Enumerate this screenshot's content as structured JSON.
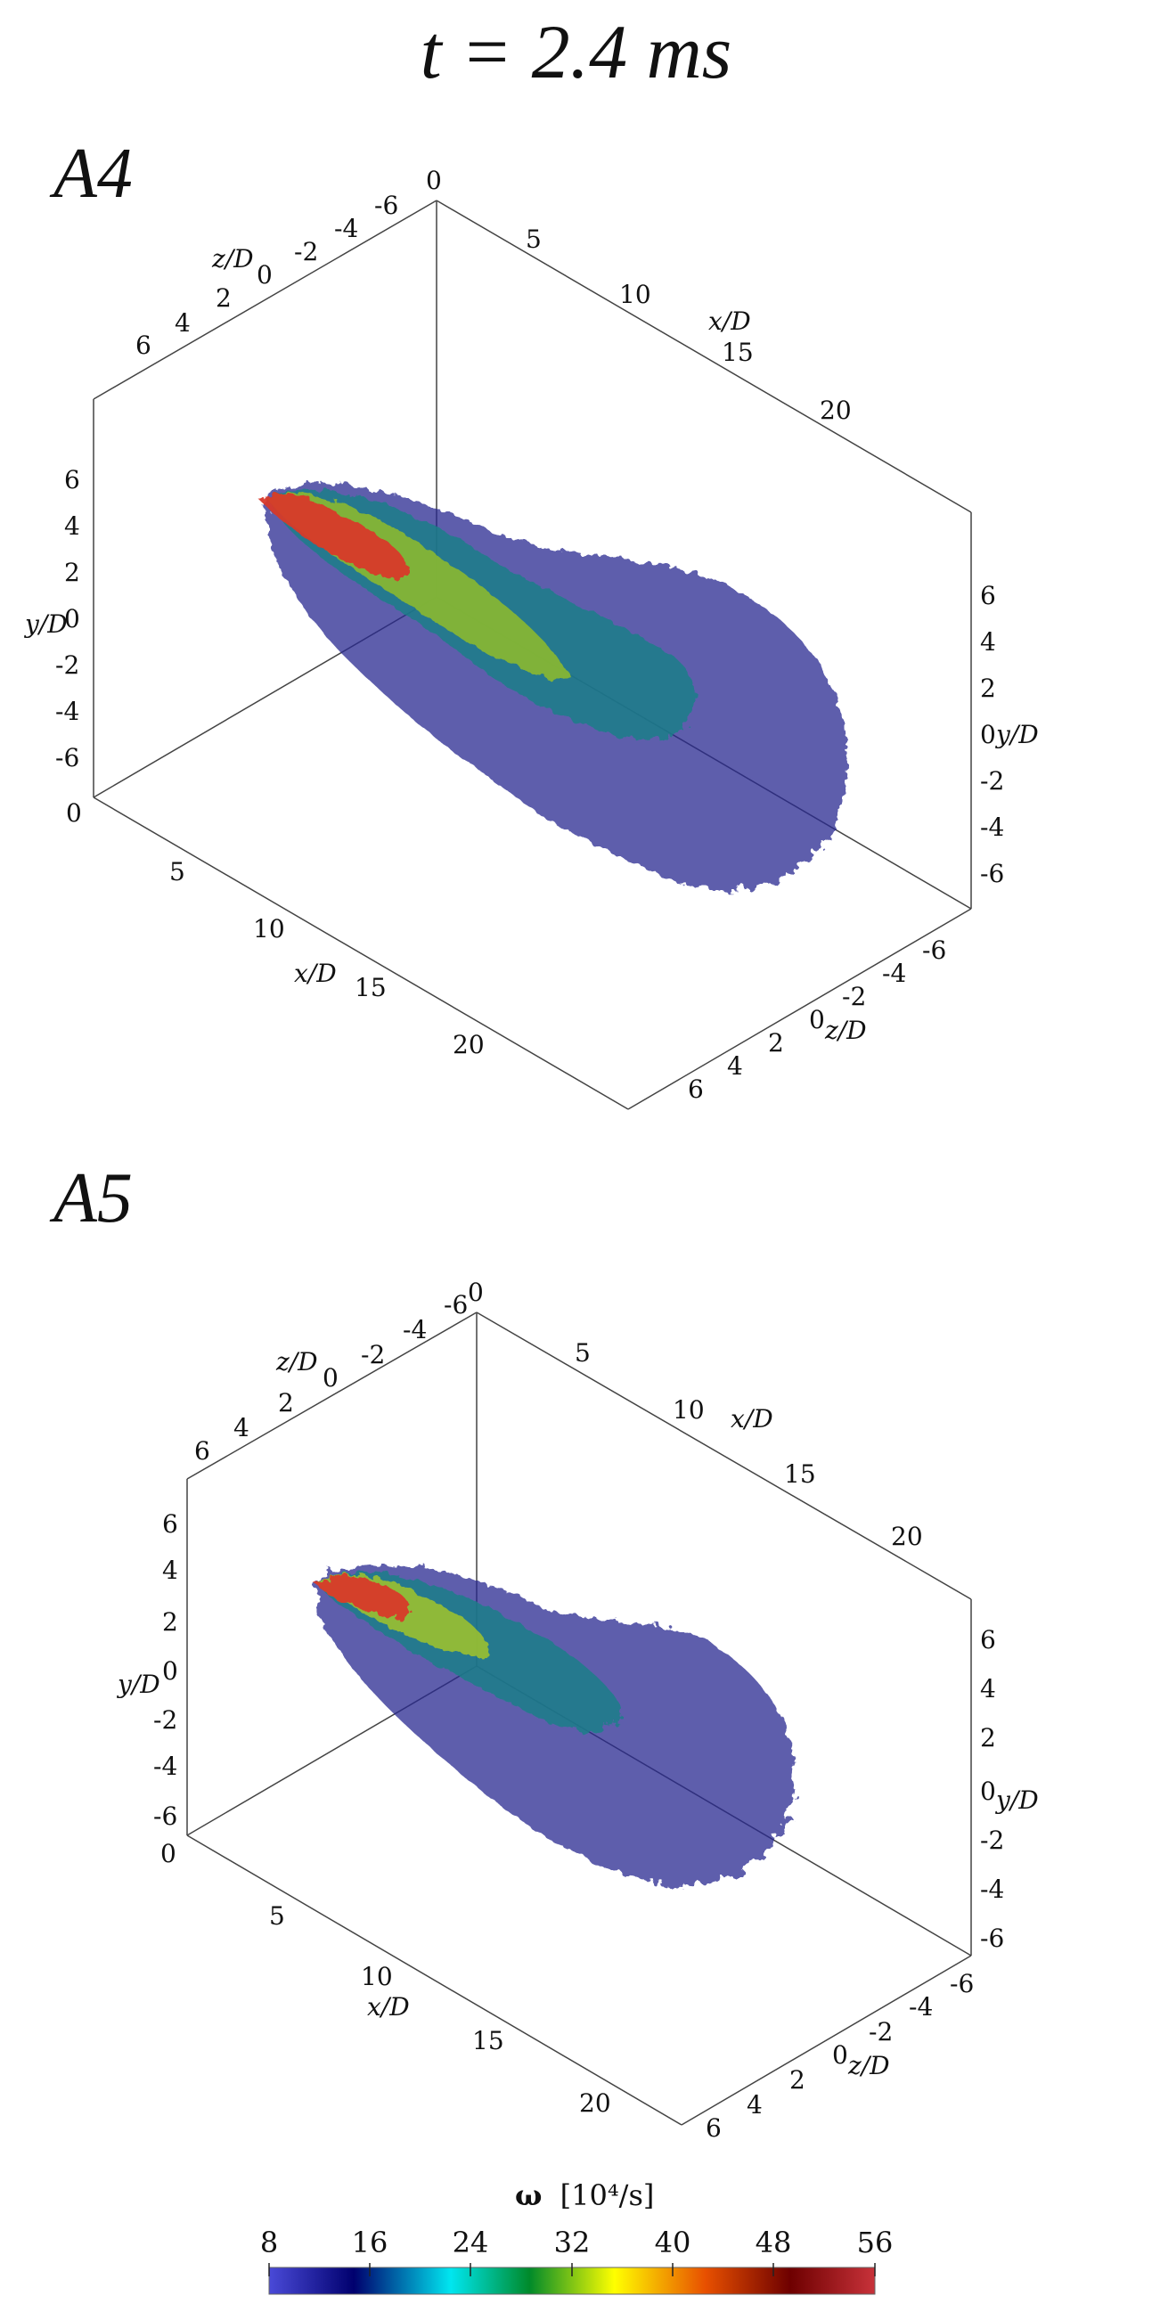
{
  "title": "t = 2.4 ms",
  "panels": [
    {
      "label": "A4",
      "axes": {
        "x_label": "x/D",
        "y_label": "y/D",
        "z_label": "z/D",
        "x_ticks": [
          "0",
          "5",
          "10",
          "15",
          "20"
        ],
        "y_ticks": [
          "6",
          "4",
          "2",
          "0",
          "-2",
          "-4",
          "-6"
        ],
        "z_ticks": [
          "6",
          "4",
          "2",
          "0",
          "-2",
          "-4",
          "-6"
        ]
      }
    },
    {
      "label": "A5",
      "axes": {
        "x_label": "x/D",
        "y_label": "y/D",
        "z_label": "z/D",
        "x_ticks": [
          "0",
          "5",
          "10",
          "15",
          "20"
        ],
        "y_ticks": [
          "6",
          "4",
          "2",
          "0",
          "-2",
          "-4",
          "-6"
        ],
        "z_ticks": [
          "6",
          "4",
          "2",
          "0",
          "-2",
          "-4",
          "-6"
        ]
      }
    }
  ],
  "colorbar": {
    "title_symbol": "ω",
    "title_units": "[10⁴/s]",
    "ticks": [
      "8",
      "16",
      "24",
      "32",
      "40",
      "48",
      "56"
    ],
    "colors": [
      "#4a4ad8",
      "#00006e",
      "#00e6f0",
      "#008a2a",
      "#ffff00",
      "#e85000",
      "#6e0000",
      "#c8323a"
    ]
  },
  "image_description": {
    "colors": {
      "core": "#d83a2a",
      "mid": "#7ab830",
      "outer": "#1f6f8a",
      "fringe": "#2a2a90"
    }
  }
}
